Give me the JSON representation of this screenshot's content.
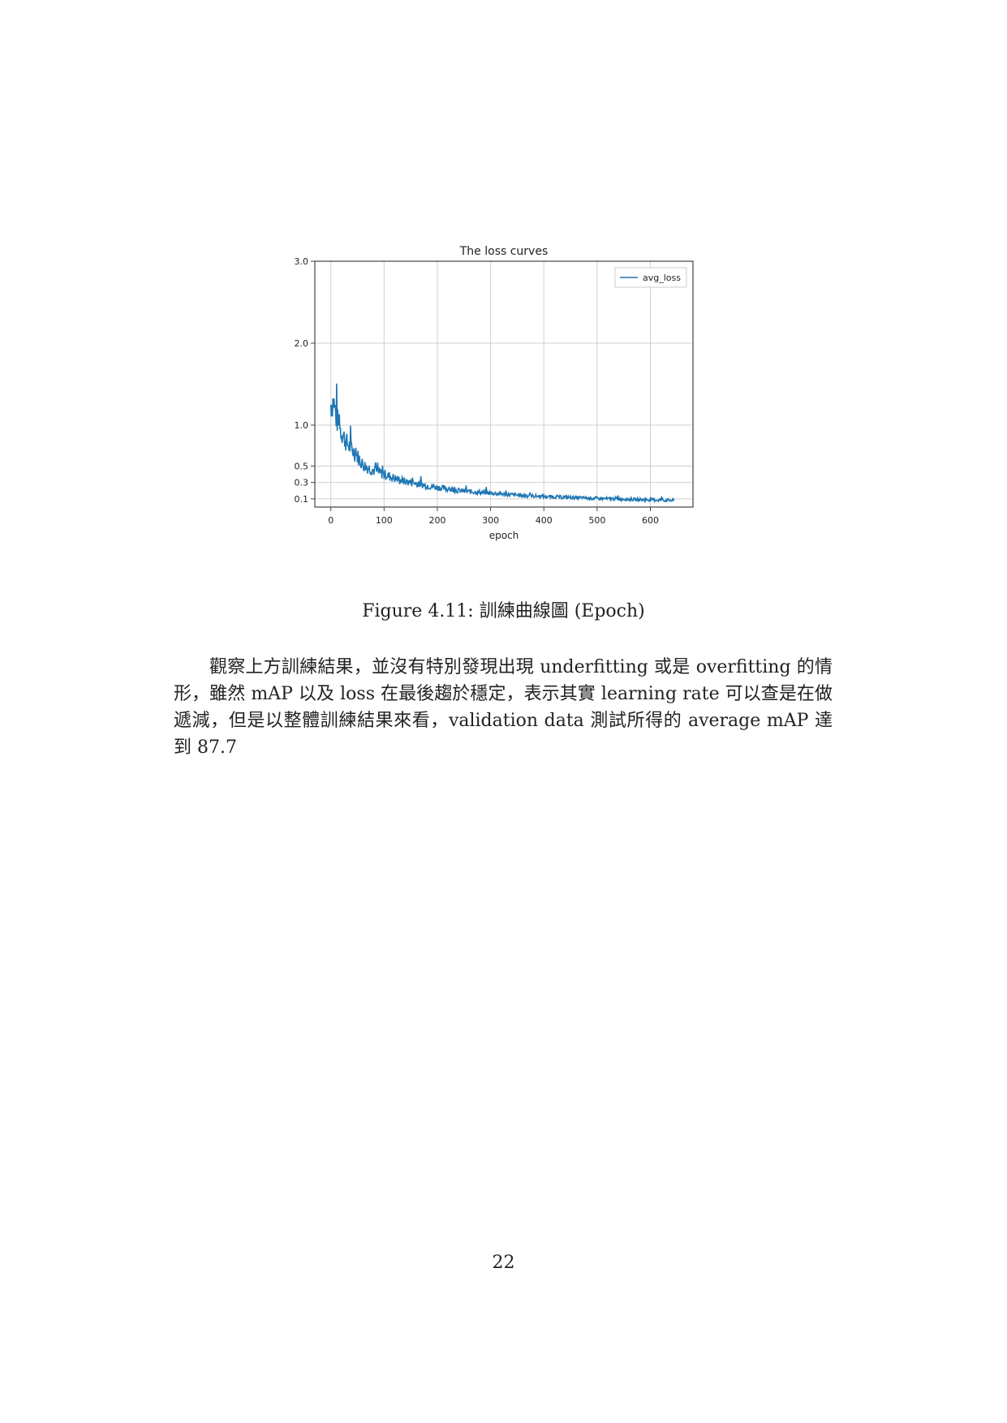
{
  "caption": "Figure 4.11: 訓練曲線圖 (Epoch)",
  "paragraph": "觀察上方訓練結果，並沒有特別發現出現 underfitting 或是 overfitting 的情形，雖然 mAP 以及 loss 在最後趨於穩定，表示其實 learning rate 可以查是在做遞減，但是以整體訓練結果來看，validation data 測試所得的 average mAP 達到 87.7",
  "page_number": "22",
  "chart_data": {
    "type": "line",
    "title": "The loss curves",
    "xlabel": "epoch",
    "ylabel": "",
    "xlim": [
      -30,
      680
    ],
    "ylim": [
      0.0,
      3.0
    ],
    "x_ticks": [
      0,
      100,
      200,
      300,
      400,
      500,
      600
    ],
    "x_tick_labels": [
      "0",
      "100",
      "200",
      "300",
      "400",
      "500",
      "600"
    ],
    "y_ticks": [
      0.1,
      0.3,
      0.5,
      1.0,
      2.0,
      3.0
    ],
    "y_tick_labels": [
      "0.1",
      "0.3",
      "0.5",
      "1.0",
      "2.0",
      "3.0"
    ],
    "grid": true,
    "legend_position": "top-right",
    "series": [
      {
        "name": "avg_loss",
        "color": "#1f77b4",
        "x": [
          0,
          5,
          10,
          15,
          20,
          25,
          30,
          40,
          50,
          60,
          70,
          80,
          90,
          100,
          120,
          140,
          160,
          180,
          200,
          220,
          240,
          260,
          280,
          300,
          320,
          340,
          360,
          380,
          400,
          420,
          440,
          460,
          480,
          500,
          520,
          540,
          560,
          580,
          600,
          620,
          645
        ],
        "y": [
          1.25,
          1.3,
          1.1,
          1.0,
          0.92,
          0.85,
          0.78,
          0.7,
          0.62,
          0.52,
          0.48,
          0.45,
          0.42,
          0.4,
          0.35,
          0.31,
          0.29,
          0.26,
          0.24,
          0.22,
          0.2,
          0.19,
          0.18,
          0.17,
          0.16,
          0.15,
          0.14,
          0.135,
          0.13,
          0.125,
          0.12,
          0.115,
          0.11,
          0.105,
          0.1,
          0.1,
          0.095,
          0.09,
          0.09,
          0.085,
          0.08
        ]
      }
    ]
  }
}
